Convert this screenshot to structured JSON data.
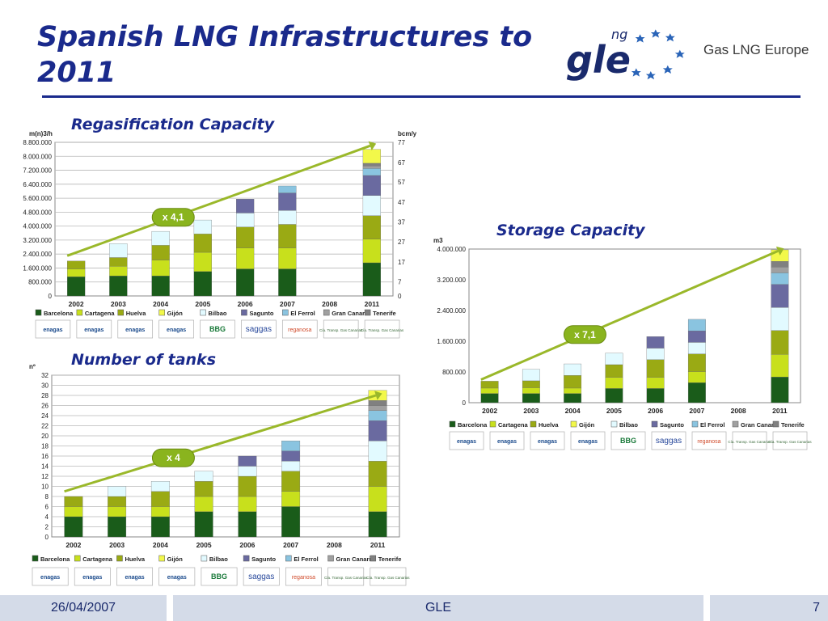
{
  "title": "Spanish LNG Infrastructures to 2011",
  "brand": {
    "logo_text": "gle",
    "logo_superscript": "ng",
    "name": "Gas LNG Europe"
  },
  "colors": {
    "title": "#1a2a8c",
    "Barcelona": "#1a5c1a",
    "Cartagena": "#c8e01c",
    "Huelva": "#9aaa14",
    "Gijón": "#f2f84a",
    "Bilbao": "#e2faff",
    "Sagunto": "#6a6aa0",
    "El Ferrol": "#8ac4e0",
    "Gran Canaria": "#a0a0a0",
    "Tenerife": "#808080",
    "trend": "#9ab82a"
  },
  "companies": [
    "enagas",
    "enagas",
    "enagas",
    "enagas",
    "BBG",
    "saggas",
    "reganosa",
    "Compañía Transportista de Gas Canarias",
    "Compañía Transportista de Gas Canarias"
  ],
  "footer": {
    "date": "26/04/2007",
    "center": "GLE",
    "page": "7"
  },
  "chart_data": [
    {
      "id": "regas",
      "type": "bar",
      "stacked": true,
      "title": "Regasification Capacity",
      "ylabel": "m(n)3/h",
      "y2label": "bcm/y",
      "ylim": [
        0,
        8800000
      ],
      "yticks": [
        "0",
        "800.000",
        "1.600.000",
        "2.400.000",
        "3.200.000",
        "4.000.000",
        "4.800.000",
        "5.600.000",
        "6.400.000",
        "7.200.000",
        "8.000.000",
        "8.800.000"
      ],
      "y2ticks": [
        {
          "label": "0",
          "v": 0
        },
        {
          "label": "7",
          "v": 800000
        },
        {
          "label": "17",
          "v": 1950000
        },
        {
          "label": "27",
          "v": 3100000
        },
        {
          "label": "37",
          "v": 4230000
        },
        {
          "label": "47",
          "v": 5380000
        },
        {
          "label": "57",
          "v": 6520000
        },
        {
          "label": "67",
          "v": 7650000
        },
        {
          "label": "77",
          "v": 8800000
        }
      ],
      "grid": true,
      "categories": [
        "2002",
        "2003",
        "2004",
        "2005",
        "2006",
        "2007",
        "2008",
        "2011"
      ],
      "series": [
        {
          "name": "Barcelona",
          "values": [
            1100000,
            1150000,
            1150000,
            1400000,
            1550000,
            1550000,
            0,
            1900000
          ]
        },
        {
          "name": "Cartagena",
          "values": [
            450000,
            550000,
            900000,
            1100000,
            1200000,
            1200000,
            0,
            1350000
          ]
        },
        {
          "name": "Huelva",
          "values": [
            450000,
            500000,
            850000,
            1050000,
            1200000,
            1350000,
            0,
            1350000
          ]
        },
        {
          "name": "Gijón",
          "values": [
            0,
            0,
            0,
            0,
            0,
            0,
            0,
            0
          ]
        },
        {
          "name": "Bilbao",
          "values": [
            0,
            800000,
            800000,
            800000,
            800000,
            800000,
            0,
            1150000
          ]
        },
        {
          "name": "Sagunto",
          "values": [
            0,
            0,
            0,
            0,
            800000,
            1000000,
            0,
            1150000
          ]
        },
        {
          "name": "El Ferrol",
          "values": [
            0,
            0,
            0,
            0,
            0,
            400000,
            0,
            400000
          ]
        },
        {
          "name": "Gran Canaria",
          "values": [
            0,
            0,
            0,
            0,
            0,
            0,
            0,
            150000
          ]
        },
        {
          "name": "Tenerife",
          "values": [
            0,
            0,
            0,
            0,
            0,
            0,
            0,
            150000
          ]
        },
        {
          "name": "Gijón",
          "values": [
            0,
            0,
            0,
            0,
            0,
            0,
            0,
            800000
          ]
        }
      ],
      "legend": [
        "Barcelona",
        "Cartagena",
        "Huelva",
        "Gijón",
        "Bilbao",
        "Sagunto",
        "El Ferrol",
        "Gran Canaria",
        "Tenerife"
      ],
      "annotation": "x 4,1",
      "trend": [
        {
          "cat": 0,
          "v": 2300000
        },
        {
          "cat": 7,
          "v": 8600000
        }
      ]
    },
    {
      "id": "storage",
      "type": "bar",
      "stacked": true,
      "title": "Storage Capacity",
      "ylabel": "m3",
      "ylim": [
        0,
        4000000
      ],
      "yticks": [
        "0",
        "800.000",
        "1.600.000",
        "2.400.000",
        "3.200.000",
        "4.000.000"
      ],
      "grid": false,
      "categories": [
        "2002",
        "2003",
        "2004",
        "2005",
        "2006",
        "2007",
        "2008",
        "2011"
      ],
      "series": [
        {
          "name": "Barcelona",
          "values": [
            240000,
            240000,
            240000,
            370000,
            370000,
            520000,
            0,
            670000
          ]
        },
        {
          "name": "Cartagena",
          "values": [
            140000,
            150000,
            140000,
            290000,
            290000,
            290000,
            0,
            590000
          ]
        },
        {
          "name": "Huelva",
          "values": [
            180000,
            180000,
            330000,
            330000,
            460000,
            460000,
            0,
            620000
          ]
        },
        {
          "name": "Gijón",
          "values": [
            0,
            0,
            0,
            0,
            0,
            0,
            0,
            0
          ]
        },
        {
          "name": "Bilbao",
          "values": [
            0,
            300000,
            300000,
            300000,
            300000,
            300000,
            0,
            600000
          ]
        },
        {
          "name": "Sagunto",
          "values": [
            0,
            0,
            0,
            0,
            300000,
            300000,
            0,
            600000
          ]
        },
        {
          "name": "El Ferrol",
          "values": [
            0,
            0,
            0,
            0,
            0,
            300000,
            0,
            300000
          ]
        },
        {
          "name": "Gran Canaria",
          "values": [
            0,
            0,
            0,
            0,
            0,
            0,
            0,
            150000
          ]
        },
        {
          "name": "Tenerife",
          "values": [
            0,
            0,
            0,
            0,
            0,
            0,
            0,
            150000
          ]
        },
        {
          "name": "Gijón",
          "values": [
            0,
            0,
            0,
            0,
            0,
            0,
            0,
            300000
          ]
        }
      ],
      "legend": [
        "Barcelona",
        "Cartagena",
        "Huelva",
        "Gijón",
        "Bilbao",
        "Sagunto",
        "El Ferrol",
        "Gran Canaria",
        "Tenerife"
      ],
      "annotation": "x 7,1",
      "trend": [
        {
          "cat": 0,
          "v": 600000
        },
        {
          "cat": 7,
          "v": 3950000
        }
      ]
    },
    {
      "id": "tanks",
      "type": "bar",
      "stacked": true,
      "title": "Number of tanks",
      "ylabel": "nº",
      "ylim": [
        0,
        32
      ],
      "yticks": [
        "0",
        "2",
        "4",
        "6",
        "8",
        "10",
        "12",
        "14",
        "16",
        "18",
        "20",
        "22",
        "24",
        "26",
        "28",
        "30",
        "32"
      ],
      "grid": true,
      "categories": [
        "2002",
        "2003",
        "2004",
        "2005",
        "2006",
        "2007",
        "2008",
        "2011"
      ],
      "series": [
        {
          "name": "Barcelona",
          "values": [
            4,
            4,
            4,
            5,
            5,
            6,
            0,
            5
          ]
        },
        {
          "name": "Cartagena",
          "values": [
            2,
            2,
            2,
            3,
            3,
            3,
            0,
            5
          ]
        },
        {
          "name": "Huelva",
          "values": [
            2,
            2,
            3,
            3,
            4,
            4,
            0,
            5
          ]
        },
        {
          "name": "Gijón",
          "values": [
            0,
            0,
            0,
            0,
            0,
            0,
            0,
            0
          ]
        },
        {
          "name": "Bilbao",
          "values": [
            0,
            2,
            2,
            2,
            2,
            2,
            0,
            4
          ]
        },
        {
          "name": "Sagunto",
          "values": [
            0,
            0,
            0,
            0,
            2,
            2,
            0,
            4
          ]
        },
        {
          "name": "El Ferrol",
          "values": [
            0,
            0,
            0,
            0,
            0,
            2,
            0,
            2
          ]
        },
        {
          "name": "Gran Canaria",
          "values": [
            0,
            0,
            0,
            0,
            0,
            0,
            0,
            1
          ]
        },
        {
          "name": "Tenerife",
          "values": [
            0,
            0,
            0,
            0,
            0,
            0,
            0,
            1
          ]
        },
        {
          "name": "Gijón",
          "values": [
            0,
            0,
            0,
            0,
            0,
            0,
            0,
            2
          ]
        }
      ],
      "legend": [
        "Barcelona",
        "Cartagena",
        "Huelva",
        "Gijón",
        "Bilbao",
        "Sagunto",
        "El Ferrol",
        "Gran Canaria",
        "Tenerife"
      ],
      "annotation": "x 4",
      "trend": [
        {
          "cat": 0,
          "v": 9
        },
        {
          "cat": 7,
          "v": 28
        }
      ]
    }
  ]
}
